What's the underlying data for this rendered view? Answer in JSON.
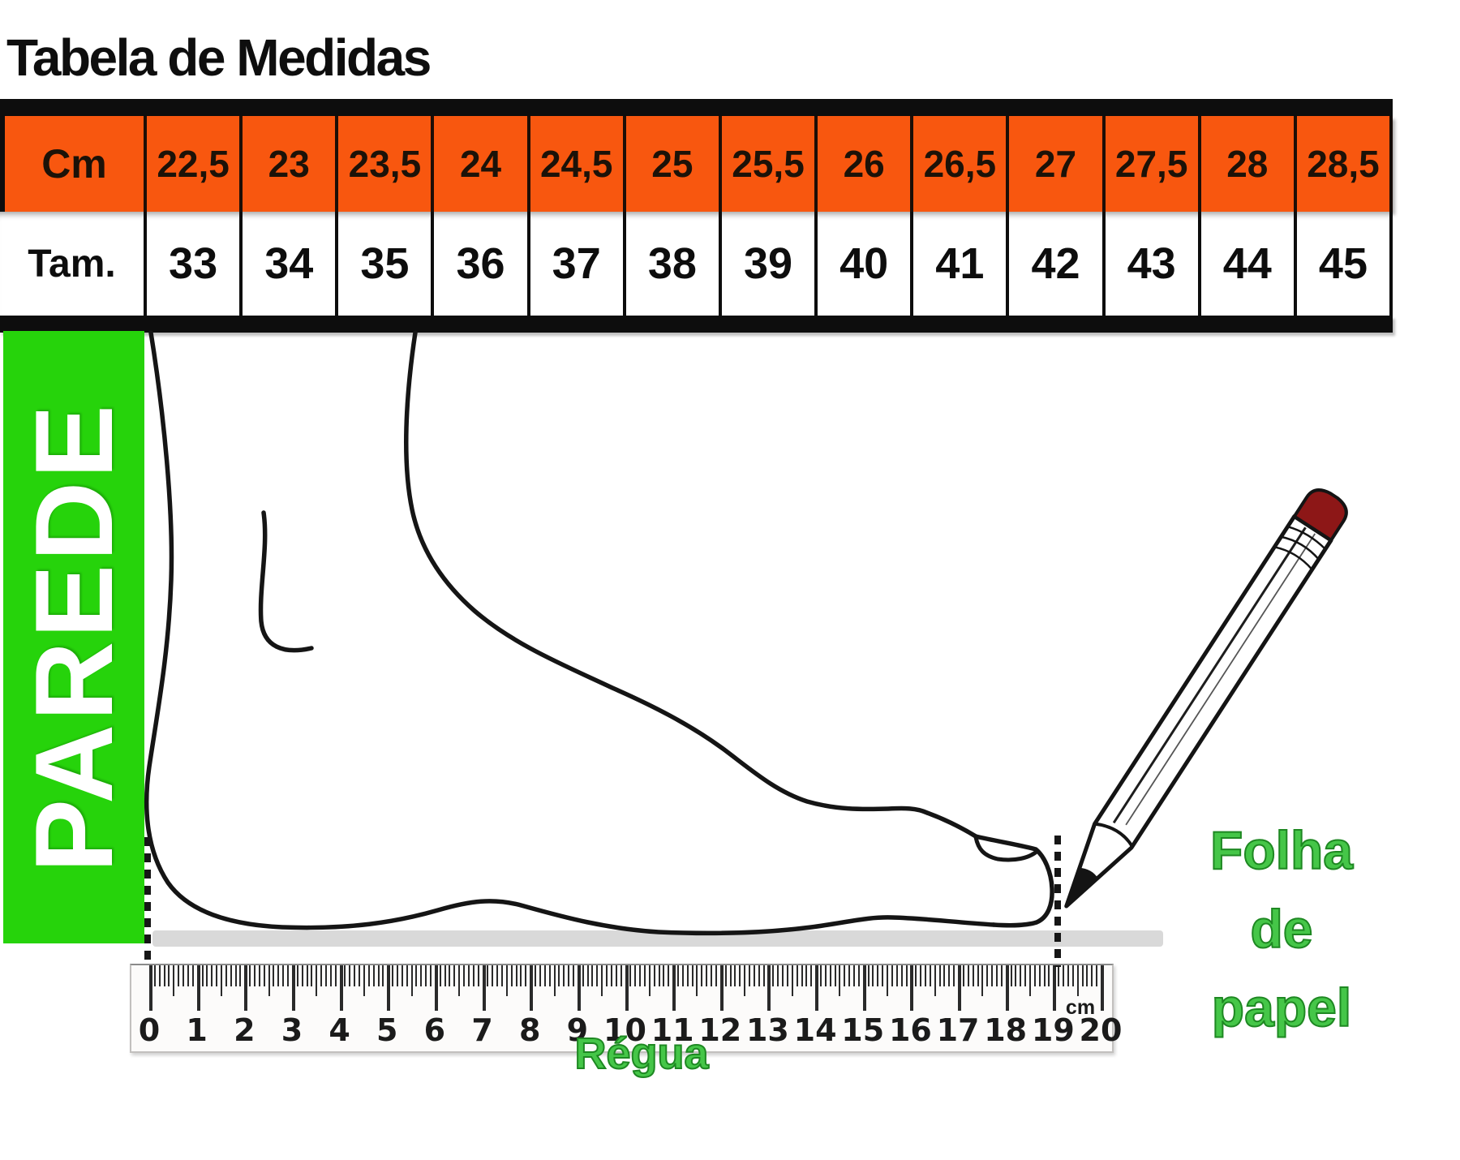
{
  "meta": {
    "title": "Tabela de Medidas"
  },
  "chart_data": {
    "type": "table",
    "title": "Tabela de Medidas",
    "rows": [
      {
        "label": "Cm",
        "values": [
          "22,5",
          "23",
          "23,5",
          "24",
          "24,5",
          "25",
          "25,5",
          "26",
          "26,5",
          "27",
          "27,5",
          "28",
          "28,5"
        ]
      },
      {
        "label": "Tam.",
        "values": [
          "33",
          "34",
          "35",
          "36",
          "37",
          "38",
          "39",
          "40",
          "41",
          "42",
          "43",
          "44",
          "45"
        ]
      }
    ],
    "layout_hint": "first row orange header band, second row white; thick black bars above and below"
  },
  "measuring_guide": {
    "wall_label": "PAREDE",
    "ruler_label": "Régua",
    "ruler_unit": "cm",
    "ruler_numbers": [
      "0",
      "1",
      "2",
      "3",
      "4",
      "5",
      "6",
      "7",
      "8",
      "9",
      "10",
      "11",
      "12",
      "13",
      "14",
      "15",
      "16",
      "17",
      "18",
      "19",
      "20"
    ],
    "paper_sheet_label": [
      "Folha",
      "de",
      "papel"
    ],
    "colors": {
      "orange": "#f8570f",
      "wall_green": "#26d30b",
      "label_green": "#45c648",
      "paper_gray": "#d9d9d9",
      "pencil_eraser_red": "#8d1717"
    }
  }
}
